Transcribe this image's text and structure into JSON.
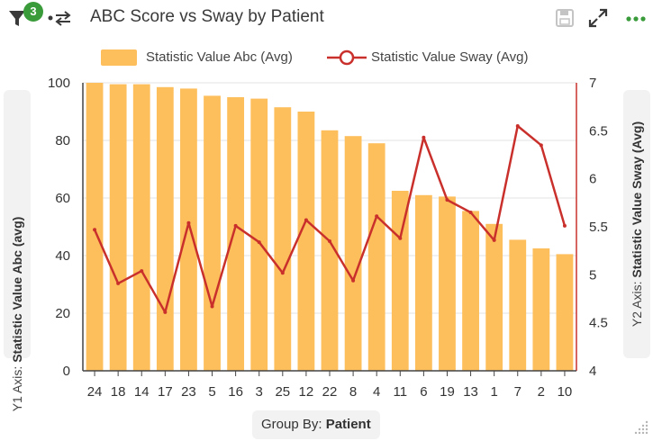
{
  "header": {
    "title": "ABC Score vs Sway by Patient",
    "filter_count": "3",
    "icons": [
      "filter-icon",
      "flow-icon",
      "save-icon",
      "expand-icon",
      "more-icon"
    ]
  },
  "legend": {
    "bar_label": "Statistic Value Abc (Avg)",
    "line_label": "Statistic Value Sway (Avg)"
  },
  "axes": {
    "y1_prefix": "Y1 Axis:",
    "y1_name": "Statistic Value Abc (avg)",
    "y2_prefix": "Y2 Axis:",
    "y2_name": "Statistic Value Sway (Avg)",
    "group_prefix": "Group By:",
    "group_name": "Patient"
  },
  "colors": {
    "bar": "#fdbe5c",
    "line": "#c9302c",
    "accent_green": "#3a9b3a"
  },
  "chart_data": {
    "type": "bar+line",
    "categories": [
      "24",
      "18",
      "14",
      "17",
      "23",
      "5",
      "16",
      "3",
      "25",
      "12",
      "22",
      "8",
      "4",
      "11",
      "6",
      "19",
      "13",
      "1",
      "7",
      "2",
      "10"
    ],
    "series": [
      {
        "name": "Statistic Value Abc (Avg)",
        "type": "bar",
        "axis": "y1",
        "values": [
          100,
          99.5,
          99.5,
          98.5,
          98,
          95.5,
          95,
          94.5,
          91.5,
          90,
          83.5,
          81.5,
          79,
          62.5,
          61,
          60.5,
          55.5,
          51,
          45.5,
          42.5,
          40.5
        ]
      },
      {
        "name": "Statistic Value Sway (Avg)",
        "type": "line",
        "axis": "y2",
        "values": [
          5.47,
          4.91,
          5.04,
          4.61,
          5.54,
          4.67,
          5.51,
          5.34,
          5.02,
          5.57,
          5.35,
          4.94,
          5.61,
          5.38,
          6.43,
          5.78,
          5.65,
          5.36,
          6.55,
          6.35,
          5.51
        ]
      }
    ],
    "y1": {
      "min": 0,
      "max": 100,
      "ticks": [
        0,
        20,
        40,
        60,
        80,
        100
      ]
    },
    "y2": {
      "min": 4,
      "max": 7,
      "ticks": [
        "4",
        "4.5",
        "5",
        "5.5",
        "6",
        "6.5",
        "7"
      ]
    },
    "legend_position": "top"
  }
}
